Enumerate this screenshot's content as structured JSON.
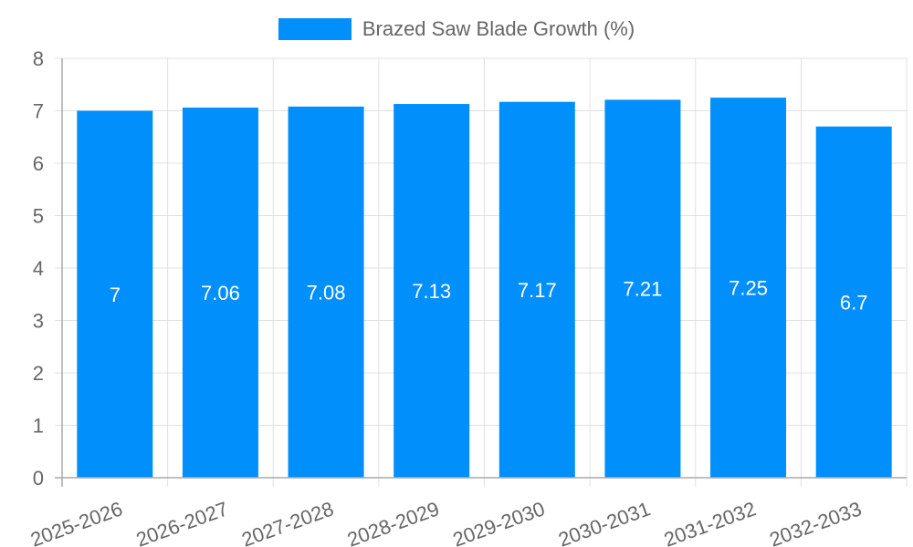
{
  "chart_data": {
    "type": "bar",
    "title": "",
    "legend": [
      "Brazed Saw Blade Growth (%)"
    ],
    "legend_position": "top",
    "categories": [
      "2025-2026",
      "2026-2027",
      "2027-2028",
      "2028-2029",
      "2029-2030",
      "2030-2031",
      "2031-2032",
      "2032-2033"
    ],
    "series": [
      {
        "name": "Brazed Saw Blade Growth (%)",
        "values": [
          7,
          7.06,
          7.08,
          7.13,
          7.17,
          7.21,
          7.25,
          6.7
        ],
        "labels": [
          "7",
          "7.06",
          "7.08",
          "7.13",
          "7.17",
          "7.21",
          "7.25",
          "6.7"
        ],
        "color": "#008ffb"
      }
    ],
    "xlabel": "",
    "ylabel": "",
    "ylim": [
      0,
      8
    ],
    "yticks": [
      0,
      1,
      2,
      3,
      4,
      5,
      6,
      7,
      8
    ],
    "grid": true,
    "x_tick_rotation": -20
  },
  "colors": {
    "bar": "#008ffb",
    "grid": "#e0e0e0",
    "axis": "#aaaaaa",
    "tick_text": "#666666",
    "data_label": "#ffffff"
  }
}
